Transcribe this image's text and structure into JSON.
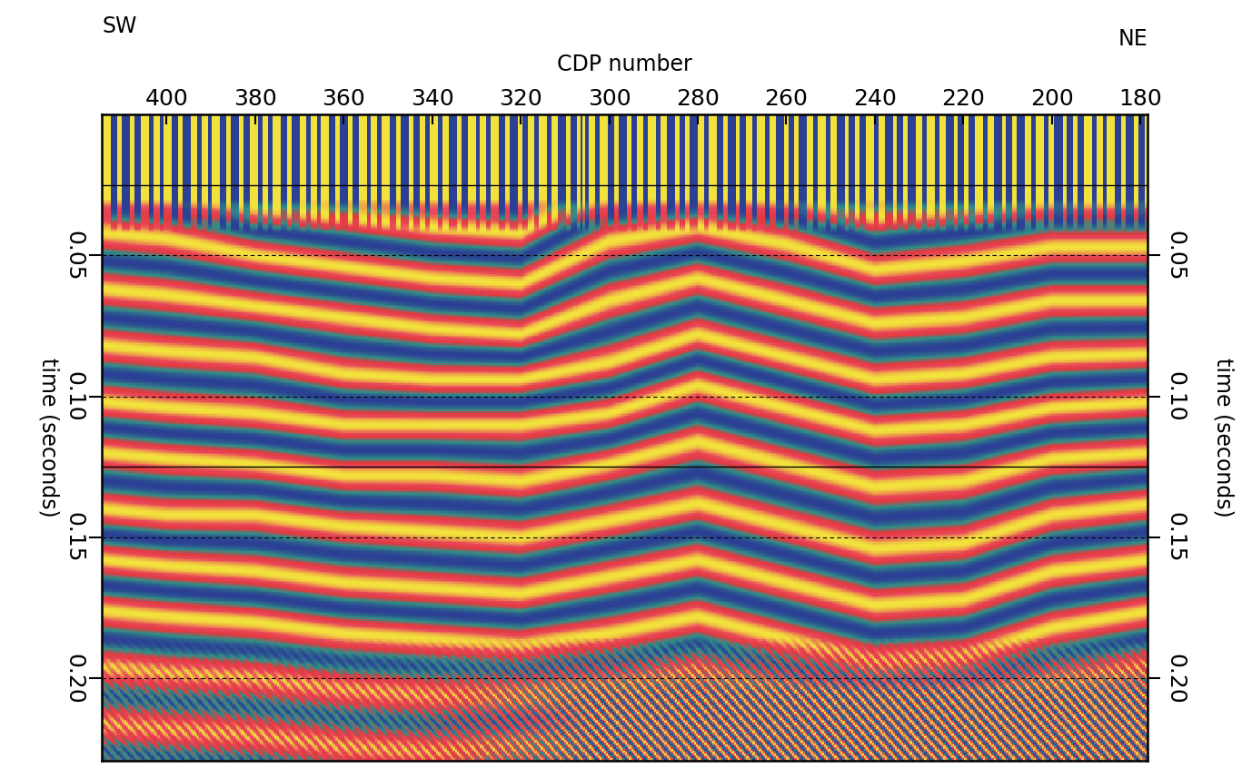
{
  "chart_data": {
    "type": "seismic_section",
    "x_label": "CDP number",
    "y_label": "time (seconds)",
    "direction_labels": {
      "left": "SW",
      "right": "NE"
    },
    "xlim": [
      414.6,
      178.4
    ],
    "xticks": [
      400,
      380,
      360,
      340,
      320,
      300,
      280,
      260,
      240,
      220,
      200,
      180
    ],
    "ylim": [
      0.229,
      0.0
    ],
    "yticks": [
      {
        "value": 0.05,
        "label": "0.05"
      },
      {
        "value": 0.1,
        "label": "0.10"
      },
      {
        "value": 0.15,
        "label": "0.15"
      },
      {
        "value": 0.2,
        "label": "0.20"
      }
    ],
    "grid": true,
    "horizontal_lines": [
      0.025,
      0.125
    ],
    "colors": [
      "#2b3f94",
      "#2f8f86",
      "#e5383e",
      "#e8485a",
      "#f2e23c"
    ],
    "cdp": [
      414,
      400,
      380,
      360,
      340,
      320,
      300,
      280,
      260,
      240,
      220,
      200,
      178
    ],
    "horizons": [
      [
        0.042,
        0.044,
        0.05,
        0.054,
        0.058,
        0.06,
        0.045,
        0.04,
        0.046,
        0.055,
        0.052,
        0.047,
        0.047
      ],
      [
        0.062,
        0.064,
        0.068,
        0.072,
        0.076,
        0.078,
        0.066,
        0.058,
        0.066,
        0.074,
        0.072,
        0.066,
        0.066
      ],
      [
        0.082,
        0.084,
        0.086,
        0.092,
        0.094,
        0.094,
        0.088,
        0.078,
        0.086,
        0.094,
        0.092,
        0.086,
        0.085
      ],
      [
        0.102,
        0.104,
        0.106,
        0.11,
        0.11,
        0.11,
        0.106,
        0.096,
        0.104,
        0.112,
        0.11,
        0.104,
        0.102
      ],
      [
        0.12,
        0.122,
        0.124,
        0.128,
        0.128,
        0.13,
        0.124,
        0.116,
        0.124,
        0.132,
        0.13,
        0.122,
        0.12
      ],
      [
        0.14,
        0.142,
        0.142,
        0.146,
        0.148,
        0.15,
        0.144,
        0.138,
        0.146,
        0.154,
        0.152,
        0.142,
        0.138
      ],
      [
        0.158,
        0.16,
        0.162,
        0.166,
        0.168,
        0.17,
        0.164,
        0.158,
        0.166,
        0.174,
        0.172,
        0.162,
        0.158
      ],
      [
        0.176,
        0.178,
        0.18,
        0.184,
        0.186,
        0.188,
        0.184,
        0.178,
        0.186,
        0.194,
        0.192,
        0.182,
        0.176
      ],
      [
        0.196,
        0.198,
        0.2,
        0.204,
        0.206,
        0.206,
        0.204,
        0.198,
        0.206,
        0.212,
        0.21,
        0.202,
        0.196
      ]
    ]
  }
}
